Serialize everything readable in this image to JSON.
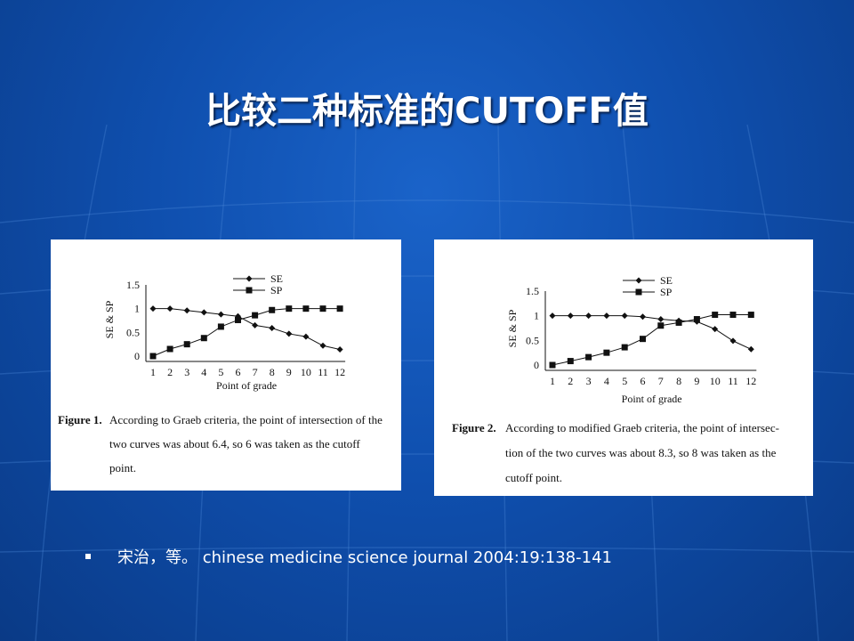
{
  "slide": {
    "title": "比较二种标准的CUTOFF值",
    "citation": "宋治，等。 chinese medicine science journal 2004:19:138-141"
  },
  "chart_data": [
    {
      "type": "line",
      "title": "",
      "xlabel": "Point of grade",
      "ylabel": "SE & SP",
      "x": [
        1,
        2,
        3,
        4,
        5,
        6,
        7,
        8,
        9,
        10,
        11,
        12
      ],
      "ylim": [
        0,
        1.5
      ],
      "yticks": [
        "1.5",
        "1",
        "0.5",
        "0"
      ],
      "series": [
        {
          "name": "SE",
          "marker": "diamond",
          "values": [
            1.0,
            1.0,
            0.96,
            0.92,
            0.88,
            0.84,
            0.65,
            0.59,
            0.47,
            0.41,
            0.22,
            0.14
          ]
        },
        {
          "name": "SP",
          "marker": "square",
          "values": [
            0.0,
            0.15,
            0.25,
            0.38,
            0.62,
            0.76,
            0.86,
            0.97,
            1.0,
            1.0,
            1.0,
            1.0
          ]
        }
      ],
      "caption_label": "Figure 1.",
      "caption_lines": [
        "According to Graeb criteria, the point of intersection of the",
        "two curves was about 6.4, so 6 was taken as the cutoff",
        "point."
      ]
    },
    {
      "type": "line",
      "title": "",
      "xlabel": "Point of grade",
      "ylabel": "SE & SP",
      "x": [
        1,
        2,
        3,
        4,
        5,
        6,
        7,
        8,
        9,
        10,
        11,
        12
      ],
      "ylim": [
        0,
        1.5
      ],
      "yticks": [
        "1.5",
        "1",
        "0.5",
        "0"
      ],
      "series": [
        {
          "name": "SE",
          "marker": "diamond",
          "values": [
            1.0,
            1.0,
            1.0,
            1.0,
            1.0,
            0.98,
            0.93,
            0.9,
            0.88,
            0.73,
            0.49,
            0.32
          ]
        },
        {
          "name": "SP",
          "marker": "square",
          "values": [
            0.0,
            0.08,
            0.16,
            0.25,
            0.36,
            0.53,
            0.8,
            0.86,
            0.93,
            1.02,
            1.02,
            1.02
          ]
        }
      ],
      "caption_label": "Figure 2.",
      "caption_lines": [
        "According to modified Graeb criteria, the point of intersec-",
        "tion of the two curves was about 8.3, so 8 was taken as the",
        "cutoff point."
      ]
    }
  ]
}
